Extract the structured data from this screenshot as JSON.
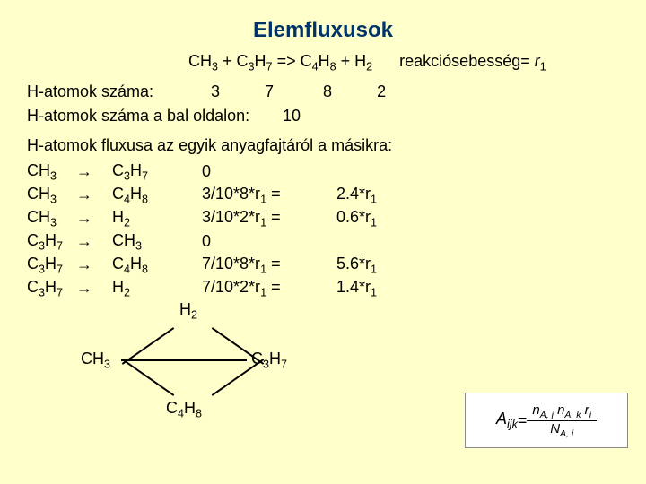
{
  "title": "Elemfluxusok",
  "equation_lhs1": "CH",
  "eq_s1": "3",
  "eq_plus1": " + C",
  "eq_s2": "3",
  "eq_h2": "H",
  "eq_s3": "7",
  "eq_arrow": " => C",
  "eq_s4": "4",
  "eq_h3": "H",
  "eq_s5": "8",
  "eq_plus2": " + H",
  "eq_s6": "2",
  "rate_label": "reakciósebesség= ",
  "rate_var": "r",
  "rate_idx": "1",
  "hcount_label": "H-atomok száma:",
  "hcounts": {
    "a": "3",
    "b": "7",
    "c": "8",
    "d": "2"
  },
  "hleft_label": "H-atomok száma a bal oldalon:",
  "hleft_value": "10",
  "fluxheader": "H-atomok fluxusa az egyik anyagfajtáról a másikra:",
  "arrow_glyph": "→",
  "flux": [
    {
      "from": "CH",
      "fs": "3",
      "to": "C",
      "ts1": "3",
      "th": "H",
      "ts2": "7",
      "expr": "0",
      "res": ""
    },
    {
      "from": "CH",
      "fs": "3",
      "to": "C",
      "ts1": "4",
      "th": "H",
      "ts2": "8",
      "expr": "3/10*8*r",
      "ei": "1",
      "eq": " =",
      "res": "2.4*r",
      "ri": "1"
    },
    {
      "from": "CH",
      "fs": "3",
      "to": "H",
      "ts1": "2",
      "th": "",
      "ts2": "",
      "expr": "3/10*2*r",
      "ei": "1",
      "eq": " =",
      "res": "0.6*r",
      "ri": "1"
    },
    {
      "from": "C",
      "fs1": "3",
      "fh": "H",
      "fs2": "7",
      "to": "CH",
      "ts1": "3",
      "th": "",
      "ts2": "",
      "expr": "0",
      "res": ""
    },
    {
      "from": "C",
      "fs1": "3",
      "fh": "H",
      "fs2": "7",
      "to": "C",
      "ts1": "4",
      "th": "H",
      "ts2": "8",
      "expr": "7/10*8*r",
      "ei": "1",
      "eq": " =",
      "res": "5.6*r",
      "ri": "1"
    },
    {
      "from": "C",
      "fs1": "3",
      "fh": "H",
      "fs2": "7",
      "to": "H",
      "ts1": "2",
      "th": "",
      "ts2": "",
      "expr": "7/10*2*r",
      "ei": "1",
      "eq": " =",
      "res": "1.4*r",
      "ri": "1"
    }
  ],
  "nodes": {
    "h2": "H",
    "h2s": "2",
    "ch3": "CH",
    "ch3s": "3",
    "c3h7": "C",
    "c3h7s1": "3",
    "c3h7h": "H",
    "c3h7s2": "7",
    "c4h8": "C",
    "c4h8s1": "4",
    "c4h8h": "H",
    "c4h8s2": "8"
  },
  "formula": {
    "lhs": "A",
    "lhs_sub": "ijk",
    "eq": " = ",
    "num1": "n",
    "num1s": "A, j",
    "num2": " n",
    "num2s": "A, k",
    "num3": " r",
    "num3s": "i",
    "den1": "N",
    "den1s": "A, i"
  }
}
